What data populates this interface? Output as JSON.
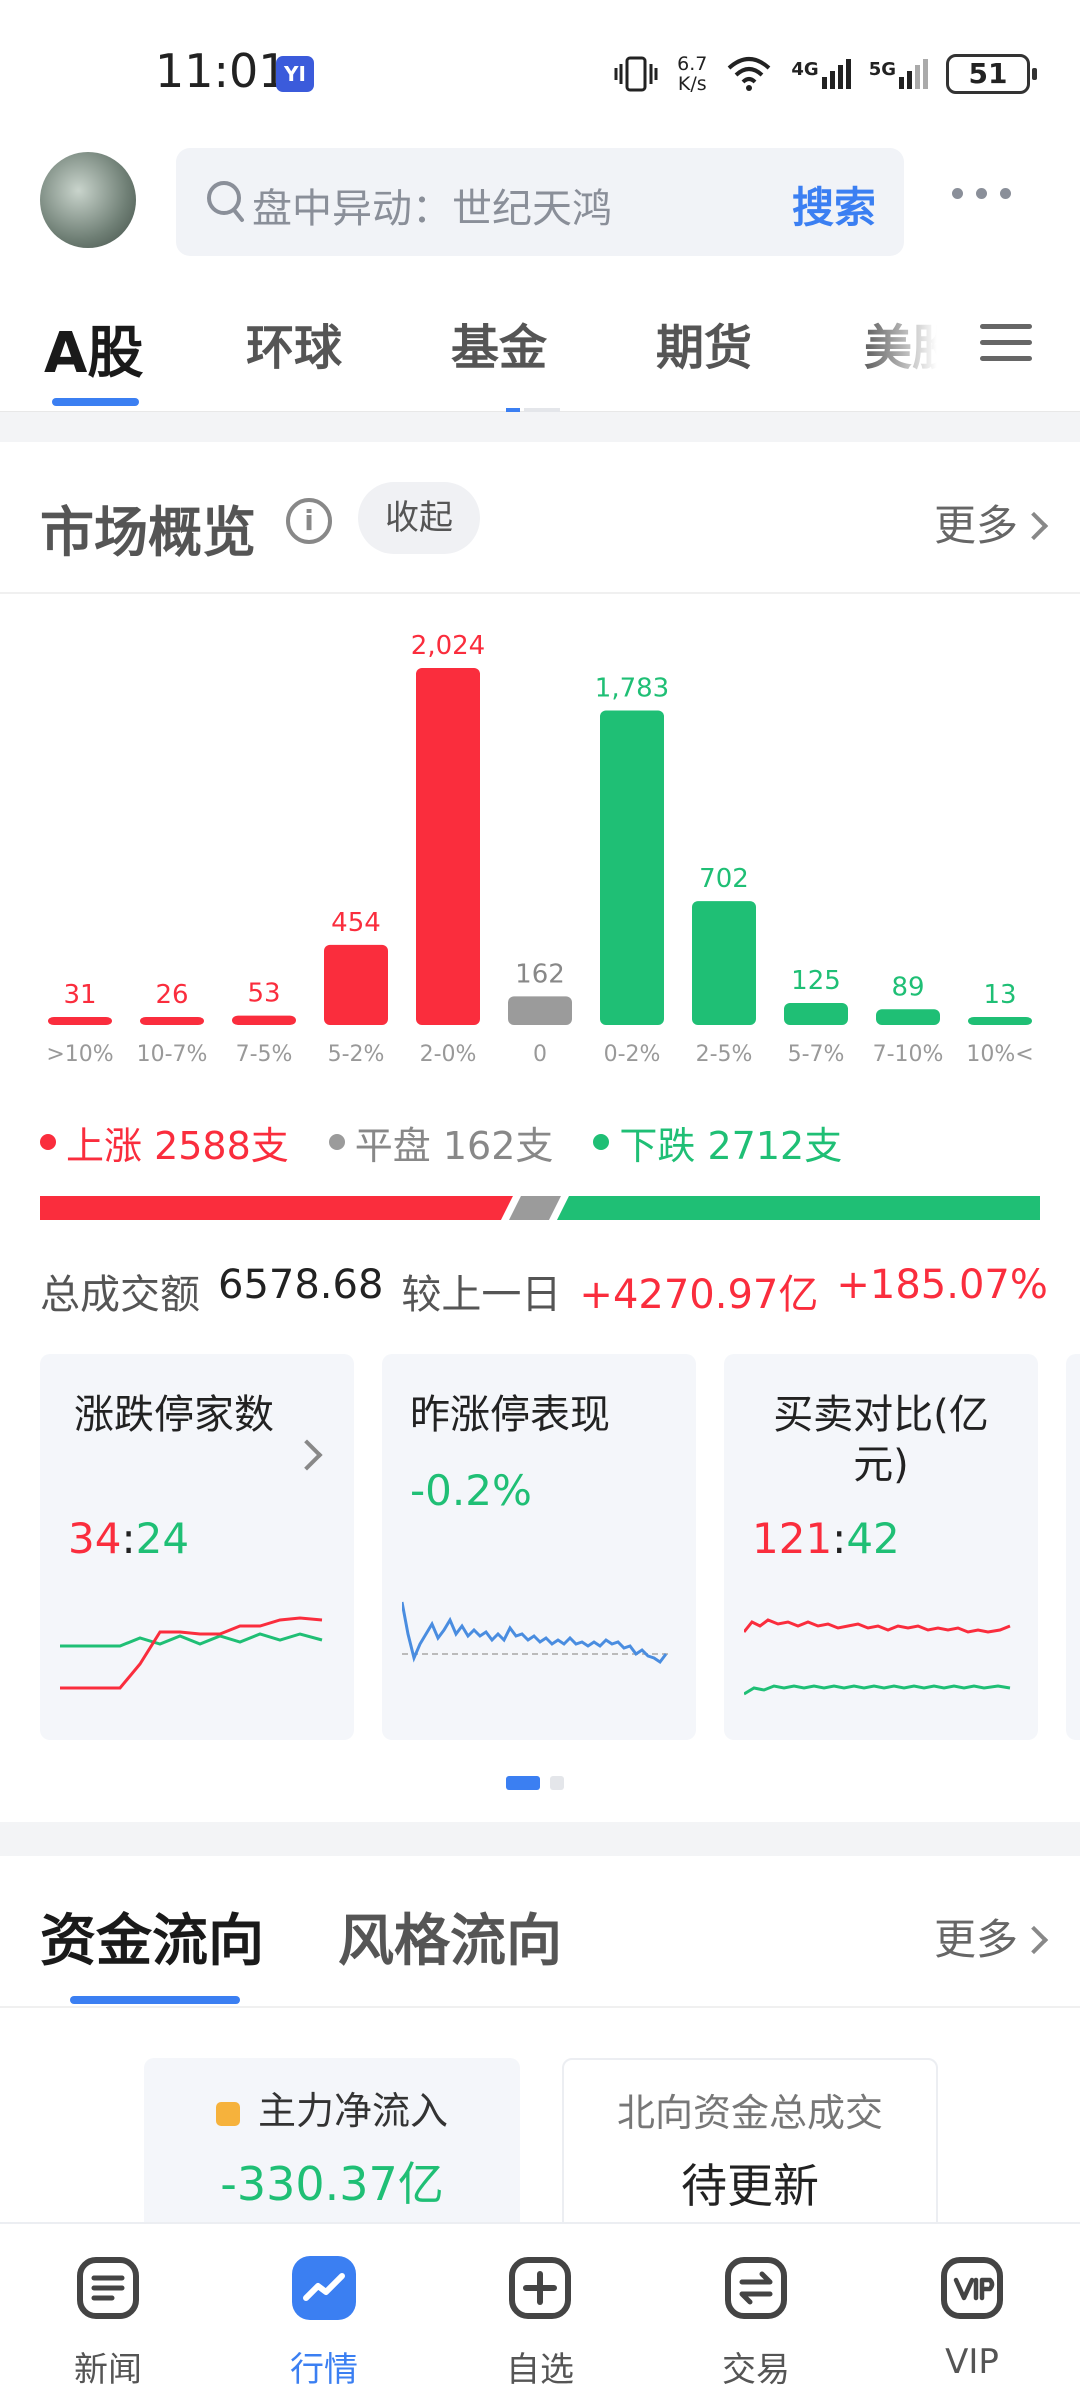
{
  "status_bar": {
    "time": "11:01",
    "app_badge": "YI",
    "net_speed_top": "6.7",
    "net_speed_bottom": "K/s",
    "net1": "4G",
    "net2": "5G",
    "battery": "51"
  },
  "header": {
    "search_placeholder": "盘中异动：世纪天鸿",
    "search_button": "搜索"
  },
  "market_tabs": {
    "tabs": [
      "A股",
      "环球",
      "基金",
      "期货",
      "美股"
    ],
    "active": "A股"
  },
  "overview": {
    "title": "市场概览",
    "collapse": "收起",
    "more": "更多",
    "rise_label": "上涨 2588支",
    "flat_label": "平盘 162支",
    "fall_label": "下跌 2712支",
    "turnover_label": "总成交额",
    "turnover_value": "6578.68",
    "compare_label": "较上一日",
    "compare_abs": "+4270.97亿",
    "compare_pct": "+185.07%",
    "rise_count": 2588,
    "flat_count": 162,
    "fall_count": 2712
  },
  "chart_data": {
    "type": "bar",
    "categories": [
      ">10%",
      "10-7%",
      "7-5%",
      "5-2%",
      "2-0%",
      "0",
      "0-2%",
      "2-5%",
      "5-7%",
      "7-10%",
      "10%<"
    ],
    "values": [
      31,
      26,
      53,
      454,
      2024,
      162,
      1783,
      702,
      125,
      89,
      13
    ],
    "value_labels": [
      "31",
      "26",
      "53",
      "454",
      "2,024",
      "162",
      "1,783",
      "702",
      "125",
      "89",
      "13"
    ],
    "bar_colors": [
      "#fa2d3d",
      "#fa2d3d",
      "#fa2d3d",
      "#fa2d3d",
      "#fa2d3d",
      "#9b9b9b",
      "#1fbf75",
      "#1fbf75",
      "#1fbf75",
      "#1fbf75",
      "#1fbf75"
    ],
    "ylim": [
      0,
      2024
    ],
    "grid": false
  },
  "cards": [
    {
      "title": "涨跌停家数",
      "value_left": "34",
      "sep": ":",
      "value_right": "24"
    },
    {
      "title": "昨涨停表现",
      "value": "-0.2%"
    },
    {
      "title": "买卖对比(亿元)",
      "value_left": "121",
      "sep": ":",
      "value_right": "42"
    }
  ],
  "flow": {
    "tab_active": "资金流向",
    "tab_other": "风格流向",
    "more": "更多",
    "card1_label": "主力净流入",
    "card1_value": "-330.37亿",
    "card2_label": "北向资金总成交",
    "card2_value": "待更新"
  },
  "bottom_nav": {
    "items": [
      "新闻",
      "行情",
      "自选",
      "交易",
      "VIP"
    ],
    "active": "行情"
  },
  "colors": {
    "up": "#fa2d3d",
    "down": "#1fbf75",
    "flat": "#9b9b9b",
    "accent": "#3b7ff2"
  }
}
